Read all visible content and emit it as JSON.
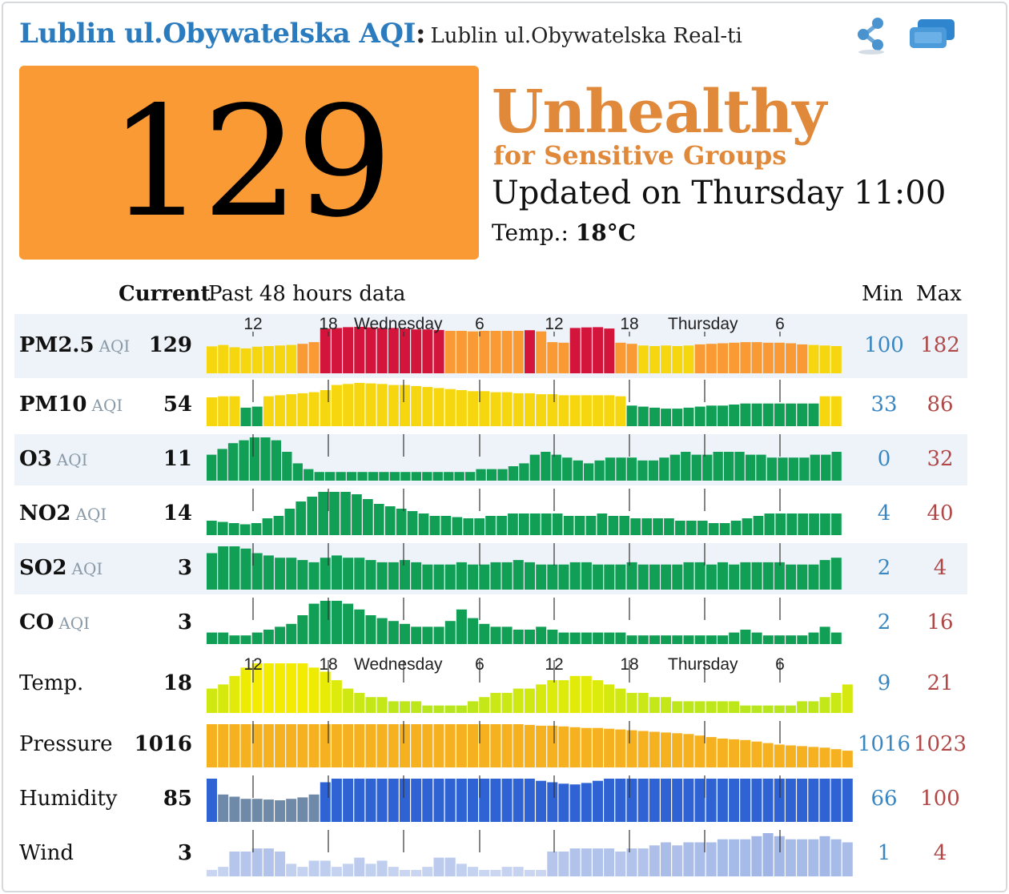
{
  "header": {
    "city": "Lublin ul.Obywatelska AQI",
    "colon": ":",
    "subtitle": "Lublin ul.Obywatelska Real-ti"
  },
  "icons": {
    "share": "share-icon",
    "widget": "widget-icon"
  },
  "aqi": {
    "value": "129",
    "level": "Unhealthy",
    "level_sub": "for Sensitive Groups",
    "updated": "Updated on Thursday 11:00",
    "temp_label": "Temp.:",
    "temp_value": "18°C"
  },
  "colors": {
    "brand_blue": "#2b7bbf",
    "aqi_orange": "#f99a34",
    "level_text": "#e0893a",
    "good": "#109f55",
    "moderate": "#f5d60f",
    "usg": "#f99a34",
    "unhealthy": "#d3143b"
  },
  "table": {
    "current_header": "Current",
    "past_header": "Past 48 hours data",
    "min_header": "Min",
    "max_header": "Max"
  },
  "axis": {
    "ticks": [
      "12",
      "18",
      "Wednesday",
      "6",
      "12",
      "18",
      "Thursday",
      "6"
    ]
  },
  "rows": [
    {
      "label": "PM2.5",
      "unit": "AQI",
      "current": "129",
      "min": "100",
      "max": "182",
      "values": [
        95,
        100,
        92,
        88,
        94,
        96,
        98,
        100,
        104,
        110,
        158,
        160,
        163,
        164,
        162,
        160,
        160,
        158,
        155,
        155,
        153,
        150,
        150,
        148,
        150,
        150,
        150,
        150,
        152,
        148,
        110,
        108,
        160,
        162,
        163,
        158,
        108,
        104,
        98,
        96,
        98,
        96,
        98,
        102,
        104,
        106,
        108,
        110,
        110,
        108,
        108,
        106,
        102,
        100,
        98,
        96
      ]
    },
    {
      "label": "PM10",
      "unit": "AQI",
      "current": "54",
      "min": "33",
      "max": "86",
      "values": [
        56,
        58,
        58,
        36,
        38,
        58,
        60,
        62,
        64,
        66,
        70,
        80,
        82,
        84,
        83,
        82,
        80,
        80,
        78,
        76,
        74,
        72,
        70,
        68,
        68,
        66,
        66,
        64,
        64,
        62,
        62,
        60,
        60,
        60,
        60,
        60,
        58,
        40,
        38,
        36,
        34,
        34,
        36,
        38,
        40,
        40,
        42,
        44,
        44,
        44,
        44,
        44,
        44,
        44,
        58,
        58
      ]
    },
    {
      "label": "O3",
      "unit": "AQI",
      "current": "11",
      "min": "0",
      "max": "32",
      "values": [
        18,
        22,
        26,
        28,
        30,
        30,
        28,
        20,
        12,
        8,
        6,
        6,
        6,
        6,
        6,
        6,
        6,
        6,
        6,
        6,
        6,
        6,
        6,
        6,
        6,
        8,
        8,
        8,
        10,
        12,
        18,
        20,
        18,
        16,
        14,
        12,
        14,
        16,
        16,
        16,
        14,
        14,
        16,
        18,
        20,
        18,
        18,
        20,
        20,
        20,
        18,
        18,
        16,
        16,
        16,
        16,
        18,
        18,
        20
      ]
    },
    {
      "label": "NO2",
      "unit": "AQI",
      "current": "14",
      "min": "4",
      "max": "40",
      "values": [
        12,
        11,
        10,
        9,
        10,
        14,
        16,
        22,
        28,
        32,
        36,
        36,
        36,
        34,
        30,
        26,
        24,
        22,
        20,
        18,
        16,
        16,
        15,
        14,
        14,
        16,
        16,
        18,
        18,
        18,
        18,
        18,
        16,
        16,
        16,
        18,
        16,
        16,
        14,
        14,
        14,
        14,
        12,
        12,
        12,
        10,
        10,
        12,
        14,
        16,
        18,
        18,
        18,
        18,
        18,
        18,
        18
      ]
    },
    {
      "label": "SO2",
      "unit": "AQI",
      "current": "3",
      "min": "2",
      "max": "4",
      "values": [
        3.2,
        3.8,
        3.8,
        3.6,
        3.2,
        3.0,
        2.8,
        2.8,
        2.6,
        2.4,
        2.8,
        3.0,
        2.8,
        2.8,
        2.6,
        2.4,
        2.4,
        2.6,
        2.4,
        2.2,
        2.2,
        2.2,
        2.4,
        2.2,
        2.2,
        2.4,
        2.4,
        2.6,
        2.4,
        2.2,
        2.2,
        2.2,
        2.4,
        2.4,
        2.2,
        2.2,
        2.2,
        2.4,
        2.2,
        2.2,
        2.2,
        2.2,
        2.4,
        2.4,
        2.2,
        2.4,
        2.2,
        2.4,
        2.4,
        2.4,
        2.4,
        2.2,
        2.2,
        2.2,
        2.6,
        2.8
      ]
    },
    {
      "label": "CO",
      "unit": "AQI",
      "current": "3",
      "min": "2",
      "max": "16",
      "values": [
        4,
        4,
        3,
        3,
        4,
        5,
        6,
        7,
        10,
        14,
        15,
        15,
        14,
        12,
        10,
        9,
        8,
        7,
        6,
        6,
        6,
        8,
        12,
        9,
        7,
        6,
        6,
        5,
        5,
        6,
        5,
        4,
        4,
        4,
        4,
        4,
        4,
        3,
        3,
        3,
        3,
        3,
        3,
        3,
        3,
        3,
        4,
        5,
        4,
        3,
        3,
        3,
        3,
        4,
        6,
        4
      ]
    },
    {
      "label": "Temp.",
      "unit": "",
      "current": "18",
      "min": "9",
      "max": "21",
      "values": [
        14,
        15,
        17,
        19,
        20,
        20,
        20,
        20,
        20,
        19,
        18,
        16,
        14,
        13,
        12,
        12,
        11,
        11,
        11,
        10,
        10,
        10,
        10,
        11,
        12,
        13,
        13,
        14,
        14,
        15,
        16,
        16,
        17,
        17,
        16,
        15,
        14,
        13,
        13,
        12,
        12,
        11,
        11,
        11,
        11,
        11,
        11,
        10,
        10,
        10,
        10,
        10,
        11,
        11,
        12,
        13,
        15
      ]
    },
    {
      "label": "Pressure",
      "unit": "",
      "current": "1016",
      "min": "1016",
      "max": "1023",
      "values": [
        1023,
        1023,
        1023,
        1023,
        1023,
        1023,
        1023,
        1023,
        1023,
        1023,
        1023,
        1023,
        1023,
        1023,
        1023,
        1023,
        1023,
        1023,
        1023,
        1023,
        1023,
        1023,
        1023,
        1023,
        1023,
        1023,
        1023,
        1023,
        1022.8,
        1022.6,
        1022.6,
        1022.4,
        1022.2,
        1022,
        1022,
        1021.8,
        1021.6,
        1021.4,
        1021.2,
        1021,
        1020.8,
        1020.6,
        1020.4,
        1020,
        1019.6,
        1019.2,
        1019,
        1018.8,
        1018.4,
        1018,
        1017.6,
        1017.4,
        1017.2,
        1017,
        1016.8,
        1016.4,
        1016
      ]
    },
    {
      "label": "Humidity",
      "unit": "",
      "current": "85",
      "min": "66",
      "max": "100",
      "values": [
        100,
        78,
        75,
        72,
        72,
        71,
        70,
        72,
        74,
        78,
        95,
        100,
        100,
        100,
        100,
        100,
        100,
        100,
        100,
        100,
        100,
        100,
        100,
        100,
        100,
        100,
        100,
        100,
        100,
        97,
        95,
        93,
        92,
        94,
        97,
        100,
        100,
        100,
        100,
        100,
        100,
        100,
        100,
        100,
        100,
        100,
        100,
        100,
        100,
        100,
        100,
        100,
        100,
        100,
        100,
        100,
        100
      ]
    },
    {
      "label": "Wind",
      "unit": "",
      "current": "3",
      "min": "1",
      "max": "4",
      "values": [
        1.2,
        1.4,
        2.4,
        2.4,
        2.6,
        2.6,
        2.4,
        1.6,
        1.4,
        1.8,
        1.8,
        1.4,
        1.6,
        2.0,
        1.6,
        1.8,
        1.4,
        1.2,
        1.2,
        1.4,
        2.0,
        2.0,
        1.6,
        1.4,
        1.2,
        1.2,
        1.4,
        1.4,
        1.2,
        1.2,
        2.4,
        2.4,
        2.6,
        2.6,
        2.6,
        2.6,
        2.4,
        2.6,
        2.6,
        2.8,
        3.0,
        2.8,
        3.0,
        3.0,
        3.0,
        3.2,
        3.2,
        3.2,
        3.4,
        3.6,
        3.4,
        3.2,
        3.2,
        3.2,
        3.4,
        3.2,
        3.0
      ]
    }
  ]
}
